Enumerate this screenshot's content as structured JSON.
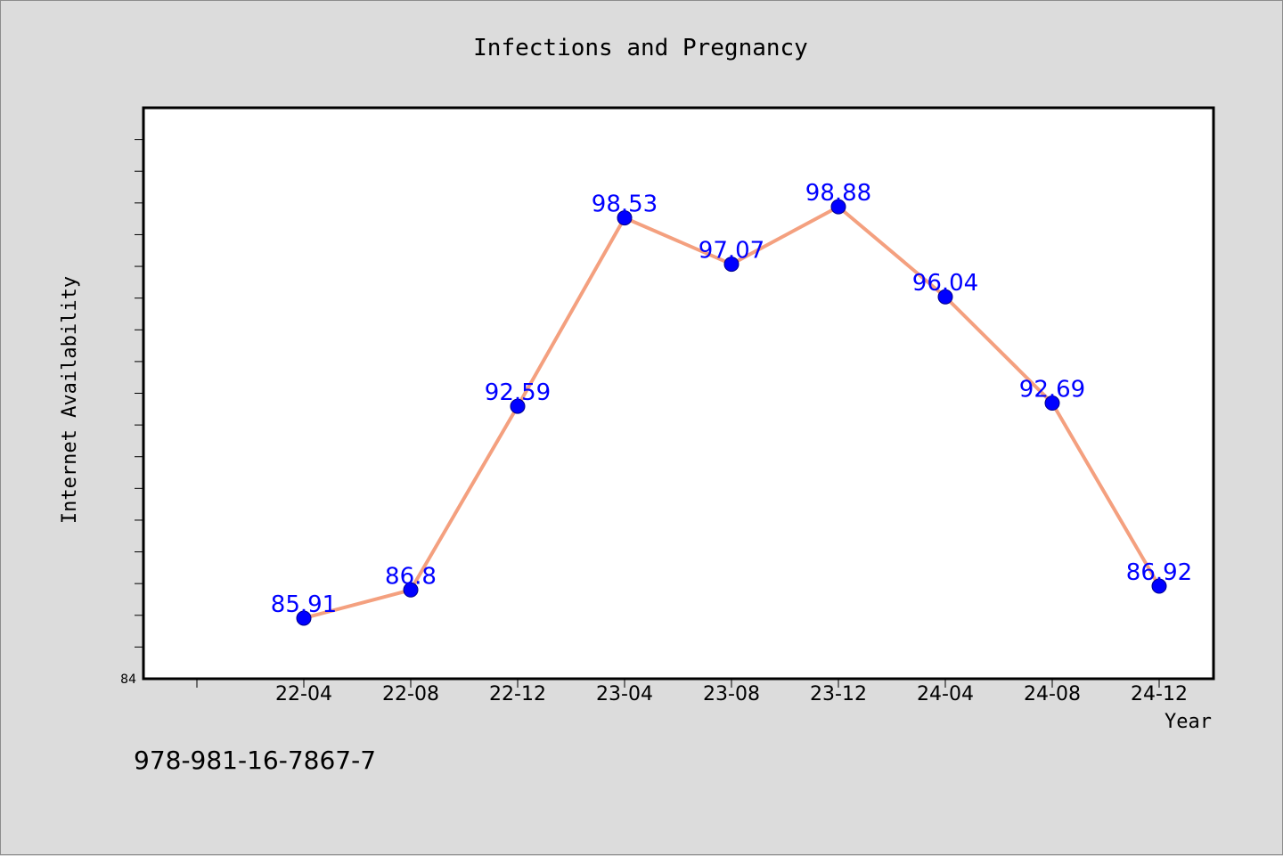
{
  "chart_data": {
    "type": "line",
    "title": "Infections and Pregnancy",
    "xlabel": "Year",
    "ylabel": "Internet Availability",
    "categories": [
      "22-04",
      "22-08",
      "22-12",
      "23-04",
      "23-08",
      "23-12",
      "24-04",
      "24-08",
      "24-12"
    ],
    "values": [
      85.91,
      86.8,
      92.59,
      98.53,
      97.07,
      98.88,
      96.04,
      92.69,
      86.92
    ],
    "value_labels": [
      "85.91",
      "86.8",
      "92.59",
      "98.53",
      "97.07",
      "98.88",
      "96.04",
      "92.69",
      "86.92"
    ],
    "ylim": [
      84,
      102
    ],
    "y_tick_labels": [
      "84"
    ],
    "grid": false,
    "colors": {
      "line": "#f4a07f",
      "marker": "#0000ff",
      "marker_edge": "#00008b",
      "data_label": "#0000ff",
      "plot_background": "#ffffff",
      "figure_background": "#dcdcdc"
    }
  },
  "footer": {
    "isbn": "978-981-16-7867-7"
  }
}
